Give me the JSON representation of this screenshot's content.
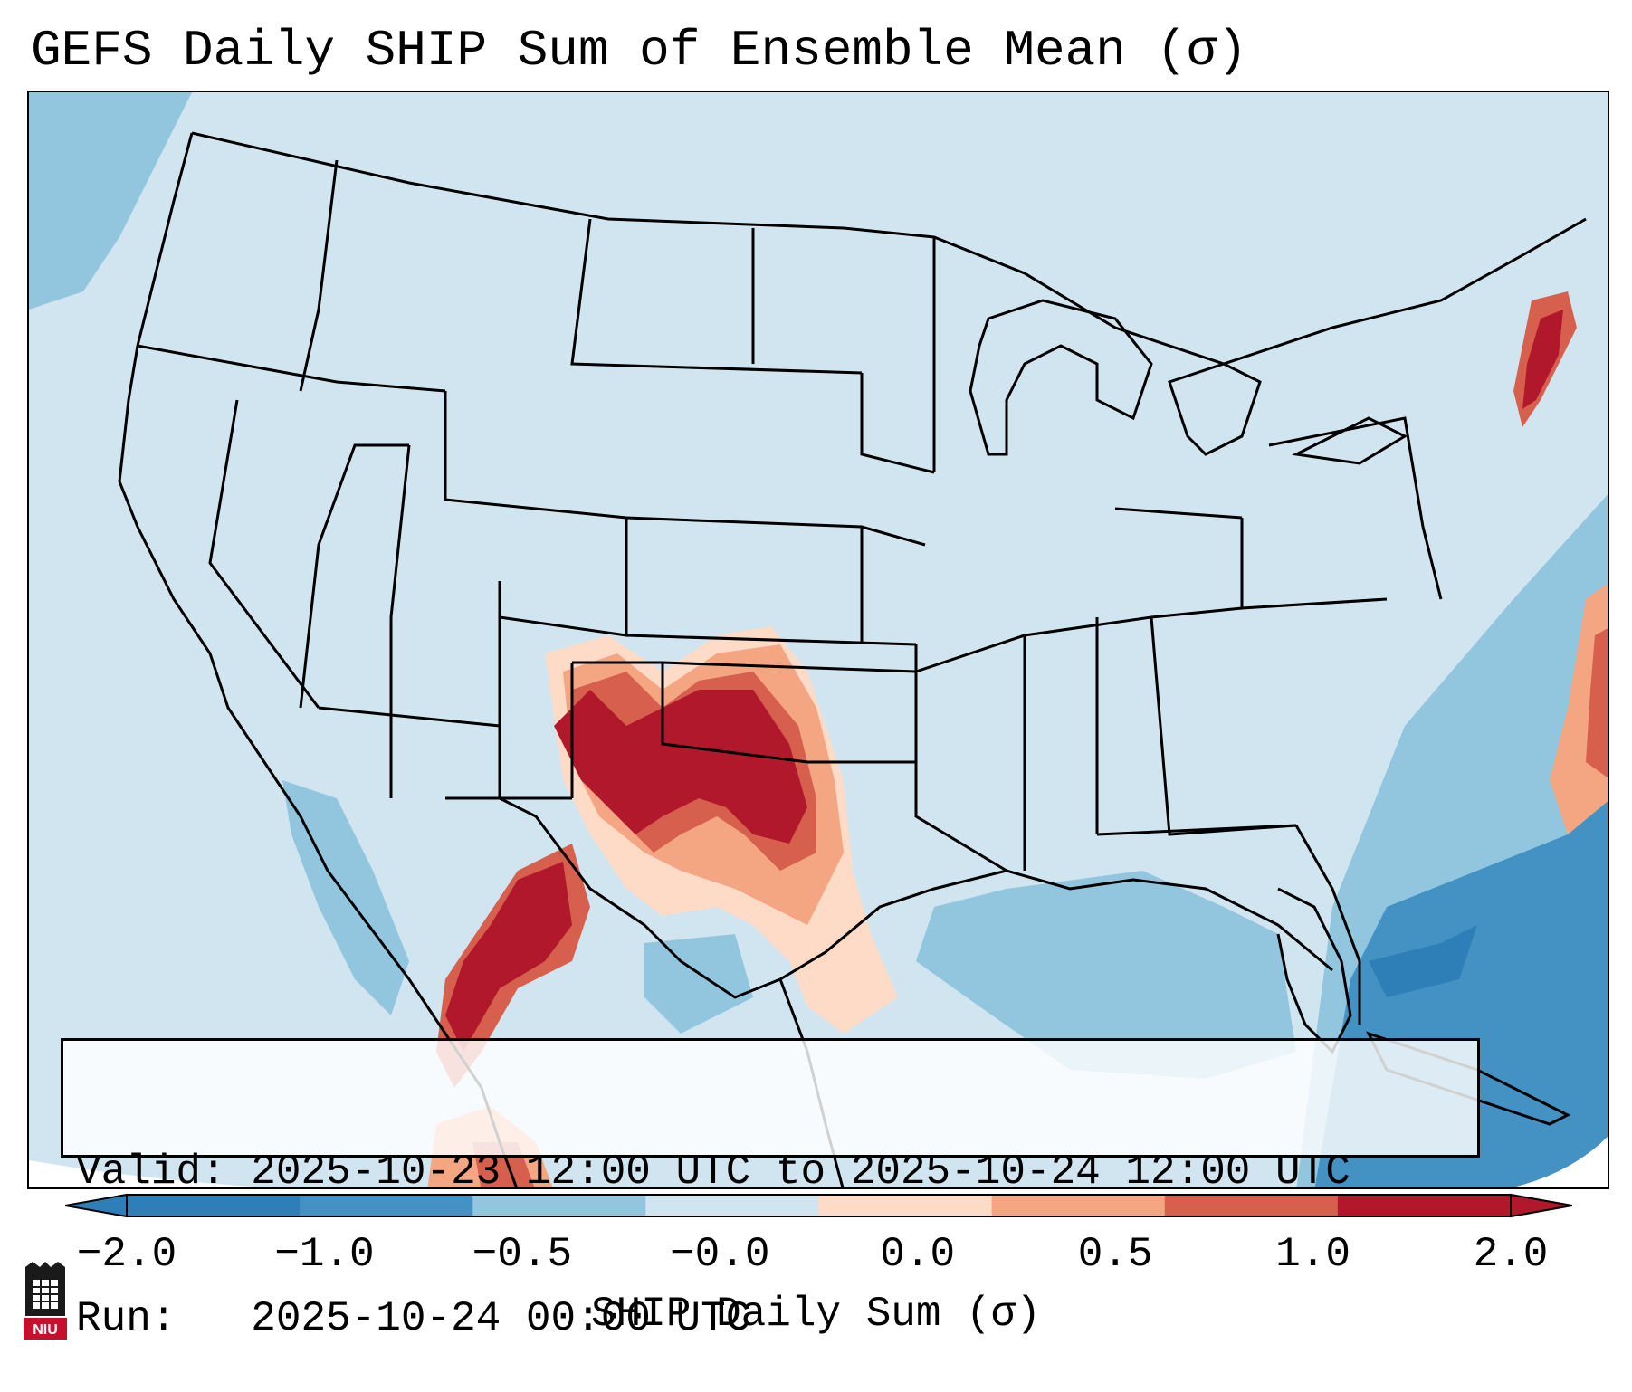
{
  "title": "GEFS Daily SHIP Sum of Ensemble Mean (σ)",
  "info": {
    "valid_line": "Valid: 2025-10-23 12:00 UTC to 2025-10-24 12:00 UTC",
    "run_line": "Run:   2025-10-24 00:00 UTC"
  },
  "colorbar": {
    "label": "SHIP Daily Sum (σ)",
    "ticks": [
      "−2.0",
      "−1.0",
      "−0.5",
      "−0.0",
      "0.0",
      "0.5",
      "1.0",
      "2.0"
    ],
    "colors": [
      "#2e7fb8",
      "#4392c3",
      "#92c5de",
      "#d1e5f0",
      "#fddbc7",
      "#f4a582",
      "#d6604d",
      "#b2182b"
    ]
  },
  "logo": {
    "text": "NIU"
  }
}
